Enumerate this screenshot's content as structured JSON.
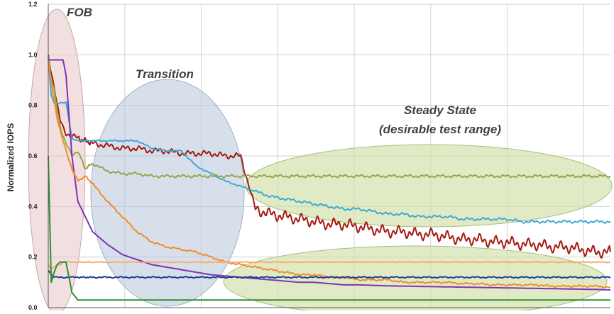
{
  "chart_data": {
    "type": "line",
    "title": "",
    "xlabel": "",
    "ylabel": "Normalized IOPS",
    "ylim": [
      0,
      1.2
    ],
    "yticks": [
      "0.0",
      "0.2",
      "0.4",
      "0.6",
      "0.8",
      "1.0",
      "1.2"
    ],
    "grid": true,
    "legend": "none",
    "annotations": {
      "fob": "FOB",
      "transition": "Transition",
      "steady_line1": "Steady State",
      "steady_line2": "(desirable test range)"
    },
    "x": [
      0,
      2,
      4,
      6,
      8,
      10,
      12,
      16,
      20,
      25,
      30,
      40,
      50,
      60,
      70,
      80,
      90,
      100,
      110,
      120,
      130,
      140,
      150,
      160,
      170,
      180,
      190,
      200,
      210,
      220,
      230,
      240,
      250,
      260,
      270,
      280,
      290,
      300,
      310,
      320,
      330,
      340,
      350,
      360,
      370,
      380
    ],
    "xlim": [
      0,
      380
    ],
    "series": [
      {
        "color": "#a31a10",
        "values": [
          1.0,
          0.93,
          0.88,
          0.8,
          0.74,
          0.71,
          0.69,
          0.68,
          0.67,
          0.66,
          0.65,
          0.64,
          0.63,
          0.63,
          0.62,
          0.62,
          0.61,
          0.61,
          0.61,
          0.6,
          0.6,
          0.39,
          0.37,
          0.36,
          0.35,
          0.34,
          0.33,
          0.33,
          0.32,
          0.31,
          0.3,
          0.3,
          0.29,
          0.29,
          0.28,
          0.27,
          0.27,
          0.26,
          0.26,
          0.25,
          0.25,
          0.24,
          0.24,
          0.23,
          0.22,
          0.22
        ]
      },
      {
        "color": "#3fa8d6",
        "values": [
          0.99,
          0.84,
          0.81,
          0.81,
          0.81,
          0.81,
          0.81,
          0.67,
          0.66,
          0.66,
          0.66,
          0.66,
          0.66,
          0.66,
          0.63,
          0.62,
          0.62,
          0.56,
          0.53,
          0.5,
          0.48,
          0.46,
          0.44,
          0.43,
          0.42,
          0.41,
          0.4,
          0.39,
          0.39,
          0.38,
          0.37,
          0.37,
          0.36,
          0.36,
          0.36,
          0.35,
          0.35,
          0.35,
          0.35,
          0.34,
          0.34,
          0.34,
          0.34,
          0.34,
          0.34,
          0.34
        ]
      },
      {
        "color": "#8ea84a",
        "values": [
          0.99,
          0.9,
          0.86,
          0.78,
          0.72,
          0.68,
          0.65,
          0.6,
          0.62,
          0.55,
          0.57,
          0.54,
          0.53,
          0.53,
          0.52,
          0.52,
          0.52,
          0.52,
          0.52,
          0.52,
          0.52,
          0.52,
          0.52,
          0.52,
          0.52,
          0.52,
          0.52,
          0.52,
          0.52,
          0.52,
          0.52,
          0.52,
          0.52,
          0.52,
          0.52,
          0.52,
          0.52,
          0.52,
          0.52,
          0.52,
          0.52,
          0.52,
          0.52,
          0.52,
          0.52,
          0.52
        ]
      },
      {
        "color": "#7b35b5",
        "values": [
          0.98,
          0.98,
          0.98,
          0.98,
          0.98,
          0.98,
          0.92,
          0.6,
          0.42,
          0.36,
          0.3,
          0.25,
          0.21,
          0.19,
          0.17,
          0.16,
          0.15,
          0.14,
          0.13,
          0.125,
          0.12,
          0.115,
          0.11,
          0.105,
          0.1,
          0.1,
          0.095,
          0.09,
          0.09,
          0.088,
          0.086,
          0.085,
          0.084,
          0.083,
          0.082,
          0.081,
          0.08,
          0.079,
          0.078,
          0.077,
          0.076,
          0.075,
          0.074,
          0.073,
          0.072,
          0.07
        ]
      },
      {
        "color": "#f28c28",
        "values": [
          0.97,
          0.9,
          0.82,
          0.75,
          0.7,
          0.66,
          0.62,
          0.55,
          0.5,
          0.52,
          0.49,
          0.42,
          0.36,
          0.3,
          0.26,
          0.24,
          0.23,
          0.22,
          0.2,
          0.18,
          0.17,
          0.16,
          0.15,
          0.14,
          0.13,
          0.13,
          0.12,
          0.12,
          0.11,
          0.11,
          0.11,
          0.1,
          0.1,
          0.1,
          0.1,
          0.095,
          0.095,
          0.09,
          0.09,
          0.09,
          0.09,
          0.085,
          0.085,
          0.085,
          0.085,
          0.08
        ]
      },
      {
        "color": "#f5ad6e",
        "values": [
          0.17,
          0.15,
          0.16,
          0.17,
          0.17,
          0.18,
          0.18,
          0.18,
          0.18,
          0.18,
          0.18,
          0.18,
          0.18,
          0.18,
          0.18,
          0.18,
          0.18,
          0.18,
          0.18,
          0.18,
          0.18,
          0.18,
          0.18,
          0.18,
          0.18,
          0.18,
          0.18,
          0.18,
          0.18,
          0.18,
          0.18,
          0.18,
          0.18,
          0.18,
          0.18,
          0.18,
          0.18,
          0.18,
          0.18,
          0.18,
          0.18,
          0.18,
          0.18,
          0.18,
          0.18,
          0.18
        ]
      },
      {
        "color": "#1f3f94",
        "values": [
          0.15,
          0.13,
          0.12,
          0.12,
          0.12,
          0.12,
          0.12,
          0.12,
          0.12,
          0.12,
          0.12,
          0.12,
          0.12,
          0.12,
          0.12,
          0.12,
          0.12,
          0.12,
          0.12,
          0.12,
          0.12,
          0.12,
          0.12,
          0.12,
          0.12,
          0.12,
          0.12,
          0.12,
          0.12,
          0.12,
          0.12,
          0.12,
          0.12,
          0.12,
          0.12,
          0.12,
          0.12,
          0.12,
          0.12,
          0.12,
          0.12,
          0.12,
          0.12,
          0.12,
          0.12,
          0.12
        ]
      },
      {
        "color": "#2f8f2f",
        "values": [
          0.6,
          0.1,
          0.14,
          0.17,
          0.18,
          0.18,
          0.18,
          0.06,
          0.03,
          0.03,
          0.03,
          0.03,
          0.03,
          0.03,
          0.03,
          0.03,
          0.03,
          0.03,
          0.03,
          0.03,
          0.03,
          0.03,
          0.03,
          0.03,
          0.03,
          0.03,
          0.03,
          0.03,
          0.03,
          0.03,
          0.03,
          0.03,
          0.03,
          0.03,
          0.03,
          0.03,
          0.03,
          0.03,
          0.03,
          0.03,
          0.03,
          0.03,
          0.03,
          0.03,
          0.03,
          0.03
        ]
      }
    ]
  }
}
